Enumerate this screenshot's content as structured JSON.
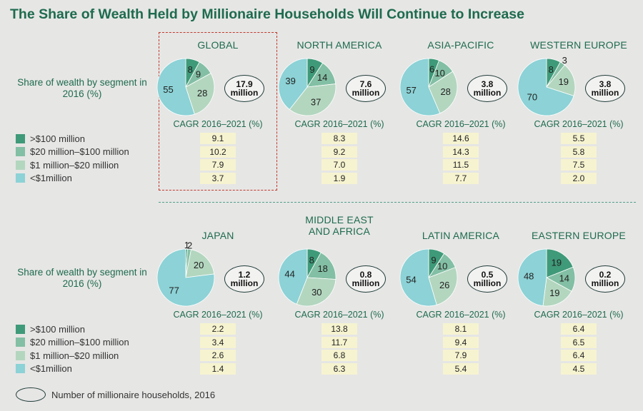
{
  "title": "The Share of Wealth Held by Millionaire Households Will Continue to Increase",
  "share_label": "Share of wealth by segment in 2016 (%)",
  "cagr_label": "CAGR 2016–2021 (%)",
  "legend": [
    {
      "label": ">$100 million",
      "color": "#3f9a79"
    },
    {
      "label": "$20 million–$100 million",
      "color": "#83bfa4"
    },
    {
      "label": "$1 million–$20 million",
      "color": "#b3d6bf"
    },
    {
      "label": "<$1million",
      "color": "#8cd2d6"
    }
  ],
  "footer_label": "Number of millionaire households, 2016",
  "chart_data": {
    "type": "pie",
    "series_order": [
      ">$100 million",
      "$20 million–$100 million",
      "$1 million–$20 million",
      "<$1million"
    ],
    "regions": [
      {
        "name": "GLOBAL",
        "shares": [
          8,
          9,
          28,
          55
        ],
        "households": [
          "17.9",
          "million"
        ],
        "cagr": [
          "9.1",
          "10.2",
          "7.9",
          "3.7"
        ]
      },
      {
        "name": "NORTH AMERICA",
        "shares": [
          9,
          14,
          37,
          39
        ],
        "households": [
          "7.6",
          "million"
        ],
        "cagr": [
          "8.3",
          "9.2",
          "7.0",
          "1.9"
        ]
      },
      {
        "name": "ASIA-PACIFIC",
        "shares": [
          6,
          10,
          28,
          57
        ],
        "households": [
          "3.8",
          "million"
        ],
        "cagr": [
          "14.6",
          "14.3",
          "11.5",
          "7.7"
        ]
      },
      {
        "name": "WESTERN EUROPE",
        "shares": [
          8,
          3,
          19,
          70
        ],
        "households": [
          "3.8",
          "million"
        ],
        "cagr": [
          "5.5",
          "5.8",
          "7.5",
          "2.0"
        ]
      },
      {
        "name": "JAPAN",
        "shares": [
          1,
          2,
          20,
          77
        ],
        "households": [
          "1.2",
          "million"
        ],
        "cagr": [
          "2.2",
          "3.4",
          "2.6",
          "1.4"
        ]
      },
      {
        "name": "MIDDLE EAST\nAND AFRICA",
        "shares": [
          8,
          18,
          30,
          44
        ],
        "households": [
          "0.8",
          "million"
        ],
        "cagr": [
          "13.8",
          "11.7",
          "6.8",
          "6.3"
        ]
      },
      {
        "name": "LATIN AMERICA",
        "shares": [
          9,
          10,
          26,
          54
        ],
        "households": [
          "0.5",
          "million"
        ],
        "cagr": [
          "8.1",
          "9.4",
          "7.9",
          "5.4"
        ]
      },
      {
        "name": "EASTERN EUROPE",
        "shares": [
          19,
          14,
          19,
          48
        ],
        "households": [
          "0.2",
          "million"
        ],
        "cagr": [
          "6.4",
          "6.5",
          "6.4",
          "4.5"
        ]
      }
    ]
  }
}
